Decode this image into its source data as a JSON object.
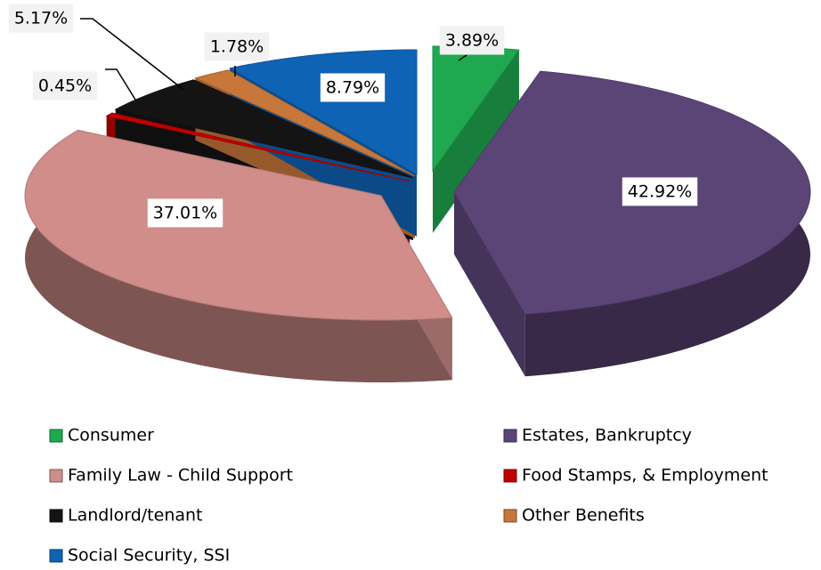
{
  "chart_data": {
    "type": "pie",
    "categories": [
      "Consumer",
      "Estates, Bankruptcy",
      "Family Law - Child Support",
      "Food Stamps, & Employment",
      "Landlord/tenant",
      "Other Benefits",
      "Social Security, SSI"
    ],
    "values": [
      3.89,
      42.92,
      37.01,
      0.45,
      5.17,
      1.78,
      8.79
    ],
    "value_labels": [
      "3.89%",
      "42.92%",
      "37.01%",
      "0.45%",
      "5.17%",
      "1.78%",
      "8.79%"
    ],
    "colors": [
      "#1fa850",
      "#5b4577",
      "#d08d8a",
      "#c00000",
      "#141414",
      "#c8773a",
      "#0f63b4"
    ],
    "legend": "bottom"
  }
}
